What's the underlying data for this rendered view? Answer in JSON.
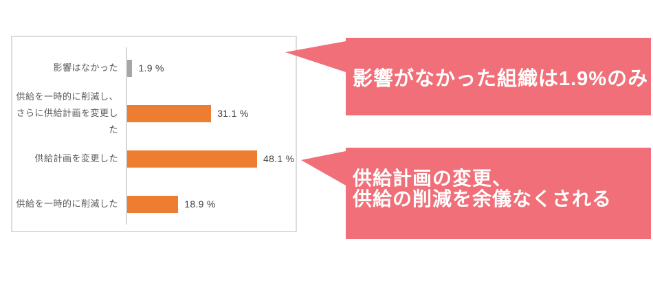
{
  "chart_data": {
    "type": "bar",
    "orientation": "horizontal",
    "categories": [
      "影響はなかった",
      "供給を一時的に削減し、\nさらに供給計画を変更した",
      "供給計画を変更した",
      "供給を一時的に削減した"
    ],
    "values": [
      1.9,
      31.1,
      48.1,
      18.9
    ],
    "value_labels": [
      "1.9 %",
      "31.1 %",
      "48.1 %",
      "18.9 %"
    ],
    "bar_colors": [
      "#a6a6a6",
      "#ed7d31",
      "#ed7d31",
      "#ed7d31"
    ],
    "value_axis_visible": false,
    "gridlines": false,
    "legend": false
  },
  "callouts": [
    {
      "text": "影響がなかった組織は1.9%のみ",
      "bg": "#f06f78",
      "text_color": "#ffffff"
    },
    {
      "text": "供給計画の変更、\n供給の削減を余儀なくされる",
      "bg": "#f06f78",
      "text_color": "#ffffff"
    }
  ],
  "colors": {
    "accent_pink": "#f06f78",
    "bar_orange": "#ed7d31",
    "bar_gray": "#a6a6a6",
    "axis_line": "#d6d6d6",
    "panel_border": "#dcdcdc",
    "category_text": "#595959",
    "value_text": "#404040"
  }
}
